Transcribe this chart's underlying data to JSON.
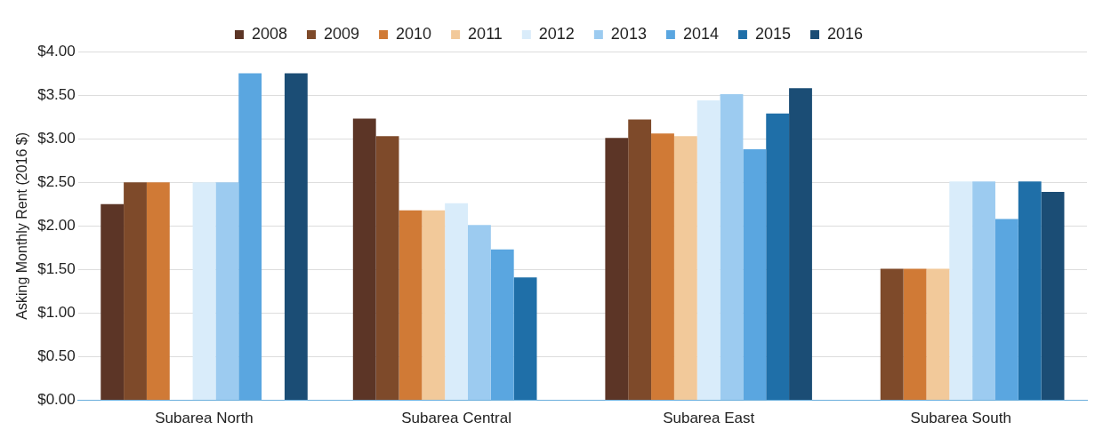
{
  "chart_data": {
    "type": "bar",
    "ylabel": "Asking Monthly Rent (2016 $)",
    "categories": [
      "Subarea North",
      "Subarea Central",
      "Subarea East",
      "Subarea South"
    ],
    "series": [
      {
        "name": "2008",
        "color": "#5c3526",
        "values": [
          2.25,
          3.23,
          3.01,
          null
        ]
      },
      {
        "name": "2009",
        "color": "#7e4a2a",
        "values": [
          2.5,
          3.03,
          3.22,
          1.51
        ]
      },
      {
        "name": "2010",
        "color": "#d07a36",
        "values": [
          2.5,
          2.18,
          3.06,
          1.51
        ]
      },
      {
        "name": "2011",
        "color": "#f2c99a",
        "values": [
          null,
          2.18,
          3.03,
          1.51
        ]
      },
      {
        "name": "2012",
        "color": "#d9ecfa",
        "values": [
          2.5,
          2.26,
          3.44,
          2.51
        ]
      },
      {
        "name": "2013",
        "color": "#9ccbf0",
        "values": [
          2.5,
          2.01,
          3.51,
          2.51
        ]
      },
      {
        "name": "2014",
        "color": "#5aa6e0",
        "values": [
          3.75,
          1.73,
          2.88,
          2.08
        ]
      },
      {
        "name": "2015",
        "color": "#1f6fa8",
        "values": [
          null,
          1.41,
          3.29,
          2.51
        ]
      },
      {
        "name": "2016",
        "color": "#1b4d75",
        "values": [
          3.75,
          null,
          3.58,
          2.39
        ]
      }
    ],
    "ylim": [
      0,
      4
    ],
    "yticks": [
      {
        "value": 0,
        "label": "$0.00"
      },
      {
        "value": 0.5,
        "label": "$0.50"
      },
      {
        "value": 1,
        "label": "$1.00"
      },
      {
        "value": 1.5,
        "label": "$1.50"
      },
      {
        "value": 2,
        "label": "$2.00"
      },
      {
        "value": 2.5,
        "label": "$2.50"
      },
      {
        "value": 3,
        "label": "$3.00"
      },
      {
        "value": 3.5,
        "label": "$3.50"
      },
      {
        "value": 4,
        "label": "$4.00"
      }
    ],
    "grid": "y",
    "legend": "top"
  }
}
